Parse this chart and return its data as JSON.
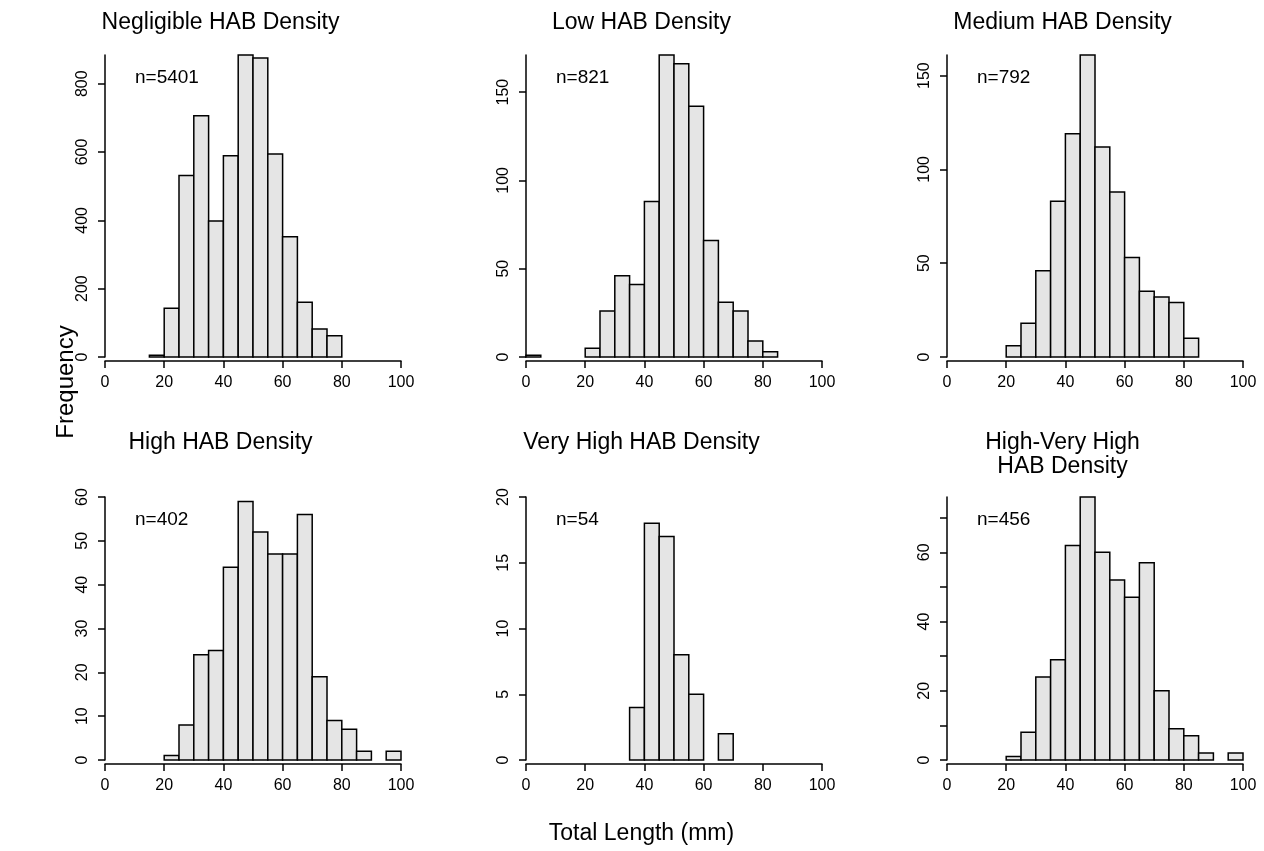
{
  "chart_data": [
    {
      "type": "histogram",
      "title": "Negligible HAB Density",
      "ylabel": "Frequency",
      "annotations": [
        "n=5401"
      ],
      "color": "#e5e5e5",
      "bins": [
        0,
        5,
        10,
        15,
        20,
        25,
        30,
        35,
        40,
        45,
        50,
        55,
        60,
        65,
        70,
        75,
        80,
        85,
        90,
        95,
        100
      ],
      "values": [
        0,
        0,
        0,
        5,
        143,
        531,
        706,
        398,
        589,
        884,
        875,
        594,
        352,
        160,
        82,
        62,
        0,
        0,
        0,
        0
      ],
      "xlim": [
        0,
        100
      ],
      "xticks": [
        0,
        20,
        40,
        60,
        80,
        100
      ],
      "ylim": [
        0,
        884
      ],
      "yticks": [
        0,
        200,
        400,
        600,
        800
      ],
      "grid": false
    },
    {
      "type": "histogram",
      "title": "Low HAB Density",
      "annotations": [
        "n=821"
      ],
      "color": "#e5e5e5",
      "bins": [
        0,
        5,
        10,
        15,
        20,
        25,
        30,
        35,
        40,
        45,
        50,
        55,
        60,
        65,
        70,
        75,
        80,
        85,
        90,
        95,
        100
      ],
      "values": [
        1,
        0,
        0,
        0,
        5,
        26,
        46,
        41,
        88,
        171,
        166,
        142,
        66,
        31,
        26,
        9,
        3,
        0,
        0,
        0
      ],
      "xlim": [
        0,
        100
      ],
      "xticks": [
        0,
        20,
        40,
        60,
        80,
        100
      ],
      "ylim": [
        0,
        171
      ],
      "yticks": [
        0,
        50,
        100,
        150
      ],
      "grid": false
    },
    {
      "type": "histogram",
      "title": "Medium HAB Density",
      "annotations": [
        "n=792"
      ],
      "color": "#e5e5e5",
      "bins": [
        0,
        5,
        10,
        15,
        20,
        25,
        30,
        35,
        40,
        45,
        50,
        55,
        60,
        65,
        70,
        75,
        80,
        85,
        90,
        95,
        100
      ],
      "values": [
        0,
        0,
        0,
        0,
        6,
        18,
        46,
        83,
        119,
        161,
        112,
        88,
        53,
        35,
        32,
        29,
        10,
        0,
        0,
        0
      ],
      "xlim": [
        0,
        100
      ],
      "xticks": [
        0,
        20,
        40,
        60,
        80,
        100
      ],
      "ylim": [
        0,
        161
      ],
      "yticks": [
        0,
        50,
        100,
        150
      ],
      "grid": false
    },
    {
      "type": "histogram",
      "title": "High HAB Density",
      "annotations": [
        "n=402"
      ],
      "color": "#e5e5e5",
      "bins": [
        0,
        5,
        10,
        15,
        20,
        25,
        30,
        35,
        40,
        45,
        50,
        55,
        60,
        65,
        70,
        75,
        80,
        85,
        90,
        95,
        100
      ],
      "values": [
        0,
        0,
        0,
        0,
        1,
        8,
        24,
        25,
        44,
        59,
        52,
        47,
        47,
        56,
        19,
        9,
        7,
        2,
        0,
        2
      ],
      "xlim": [
        0,
        100
      ],
      "xticks": [
        0,
        20,
        40,
        60,
        80,
        100
      ],
      "ylim": [
        0,
        60
      ],
      "yticks": [
        0,
        10,
        20,
        30,
        40,
        50,
        60
      ],
      "grid": false
    },
    {
      "type": "histogram",
      "title": "Very High HAB Density",
      "xlabel": "Total Length (mm)",
      "annotations": [
        "n=54"
      ],
      "color": "#e5e5e5",
      "bins": [
        0,
        5,
        10,
        15,
        20,
        25,
        30,
        35,
        40,
        45,
        50,
        55,
        60,
        65,
        70,
        75,
        80,
        85,
        90,
        95,
        100
      ],
      "values": [
        0,
        0,
        0,
        0,
        0,
        0,
        0,
        4,
        18,
        17,
        8,
        5,
        0,
        2,
        0,
        0,
        0,
        0,
        0,
        0
      ],
      "xlim": [
        0,
        100
      ],
      "xticks": [
        0,
        20,
        40,
        60,
        80,
        100
      ],
      "ylim": [
        0,
        20
      ],
      "yticks": [
        0,
        5,
        10,
        15,
        20
      ],
      "grid": false
    },
    {
      "type": "histogram",
      "title": "High-Very High\nHAB Density",
      "annotations": [
        "n=456"
      ],
      "color": "#e5e5e5",
      "bins": [
        0,
        5,
        10,
        15,
        20,
        25,
        30,
        35,
        40,
        45,
        50,
        55,
        60,
        65,
        70,
        75,
        80,
        85,
        90,
        95,
        100
      ],
      "values": [
        0,
        0,
        0,
        0,
        1,
        8,
        24,
        29,
        62,
        76,
        60,
        52,
        47,
        57,
        20,
        9,
        7,
        2,
        0,
        2
      ],
      "xlim": [
        0,
        100
      ],
      "xticks": [
        0,
        20,
        40,
        60,
        80,
        100
      ],
      "ylim": [
        0,
        76
      ],
      "yticks": [
        0,
        {
          "value": 10,
          "label": null
        },
        20,
        {
          "value": 30,
          "label": null
        },
        40,
        {
          "value": 50,
          "label": null
        },
        60,
        {
          "value": 70,
          "label": null
        }
      ],
      "grid": false
    }
  ]
}
